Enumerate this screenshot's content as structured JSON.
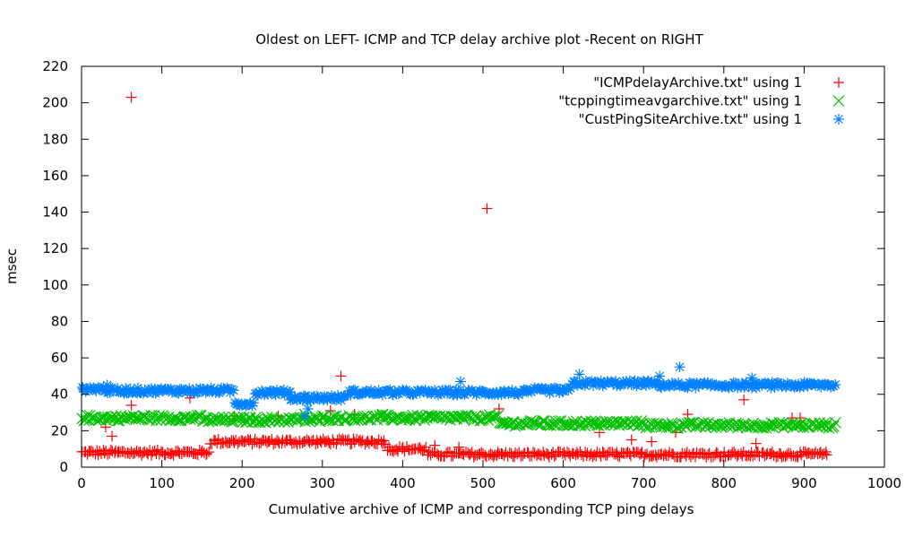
{
  "chart_data": {
    "type": "scatter",
    "title": "Oldest on LEFT- ICMP and TCP delay archive plot -Recent on RIGHT",
    "xlabel": "Cumulative archive of ICMP and corresponding TCP ping delays",
    "ylabel": "msec",
    "xlim": [
      0,
      1000
    ],
    "ylim": [
      0,
      220
    ],
    "x_ticks": [
      0,
      100,
      200,
      300,
      400,
      500,
      600,
      700,
      800,
      900,
      1000
    ],
    "y_ticks": [
      0,
      20,
      40,
      60,
      80,
      100,
      120,
      140,
      160,
      180,
      200,
      220
    ],
    "grid": false,
    "legend_position": "top-right",
    "series": [
      {
        "name": "\"ICMPdelayArchive.txt\" using 1",
        "marker": "plus",
        "color": "#ff0000",
        "segments": [
          [
            0,
            160,
            8
          ],
          [
            160,
            380,
            14
          ],
          [
            380,
            430,
            10
          ],
          [
            430,
            930,
            7
          ]
        ],
        "outliers": [
          [
            62,
            203
          ],
          [
            505,
            142
          ],
          [
            323,
            50
          ],
          [
            62,
            34
          ],
          [
            135,
            38
          ],
          [
            825,
            37
          ],
          [
            520,
            32
          ],
          [
            755,
            29
          ],
          [
            885,
            27
          ],
          [
            895,
            27
          ],
          [
            30,
            22
          ],
          [
            38,
            17
          ],
          [
            190,
            28
          ],
          [
            340,
            29
          ],
          [
            245,
            28
          ],
          [
            645,
            19
          ],
          [
            685,
            15
          ],
          [
            740,
            19
          ],
          [
            710,
            14
          ],
          [
            840,
            13
          ],
          [
            440,
            12
          ],
          [
            470,
            11
          ],
          [
            310,
            31
          ]
        ]
      },
      {
        "name": "\"tcppingtimeavgarchive.txt\" using 1",
        "marker": "cross",
        "color": "#00c000",
        "segments": [
          [
            0,
            150,
            27
          ],
          [
            150,
            300,
            26
          ],
          [
            300,
            420,
            27
          ],
          [
            420,
            520,
            27
          ],
          [
            520,
            700,
            24
          ],
          [
            700,
            940,
            23
          ]
        ],
        "outliers": [
          [
            278,
            29
          ],
          [
            375,
            29
          ]
        ]
      },
      {
        "name": "\"CustPingSiteArchive.txt\" using 1",
        "marker": "star",
        "color": "#0080ff",
        "segments": [
          [
            0,
            30,
            43
          ],
          [
            30,
            190,
            42
          ],
          [
            190,
            215,
            35
          ],
          [
            215,
            260,
            41
          ],
          [
            260,
            330,
            38
          ],
          [
            330,
            395,
            41
          ],
          [
            395,
            500,
            41
          ],
          [
            500,
            560,
            41
          ],
          [
            560,
            610,
            42
          ],
          [
            610,
            720,
            46
          ],
          [
            720,
            940,
            45
          ]
        ],
        "outliers": [
          [
            745,
            55
          ],
          [
            620,
            51
          ],
          [
            835,
            49
          ],
          [
            472,
            47
          ],
          [
            720,
            50
          ],
          [
            278,
            28
          ],
          [
            282,
            32
          ],
          [
            32,
            45
          ],
          [
            888,
            44
          ]
        ]
      }
    ]
  }
}
